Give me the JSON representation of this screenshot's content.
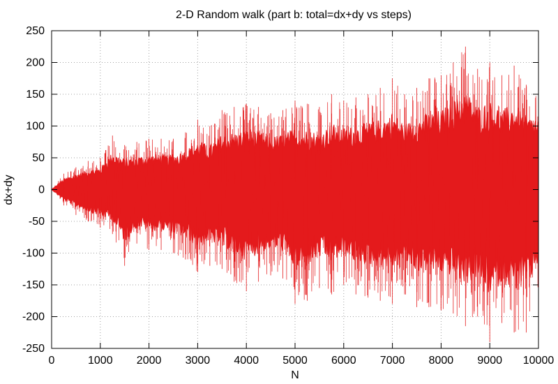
{
  "chart_data": {
    "type": "line",
    "title": "2-D Random walk (part b: total=dx+dy vs steps)",
    "xlabel": "N",
    "ylabel": "dx+dy",
    "xlim": [
      0,
      10000
    ],
    "ylim": [
      -250,
      250
    ],
    "xticks": [
      0,
      1000,
      2000,
      3000,
      4000,
      5000,
      6000,
      7000,
      8000,
      9000,
      10000
    ],
    "yticks": [
      -250,
      -200,
      -150,
      -100,
      -50,
      0,
      50,
      100,
      150,
      200,
      250
    ],
    "grid": true,
    "line_color": "#e41a1c",
    "series": [
      {
        "name": "",
        "x": [
          0,
          250,
          500,
          750,
          1000,
          1250,
          1500,
          1750,
          2000,
          2250,
          2500,
          2750,
          3000,
          3250,
          3500,
          3750,
          4000,
          4250,
          4500,
          4750,
          5000,
          5250,
          5500,
          5750,
          6000,
          6250,
          6500,
          6750,
          7000,
          7250,
          7500,
          7750,
          8000,
          8250,
          8500,
          8750,
          9000,
          9250,
          9500,
          9750,
          10000
        ],
        "upper": [
          0,
          25,
          35,
          45,
          50,
          85,
          70,
          75,
          80,
          80,
          80,
          90,
          110,
          100,
          125,
          130,
          135,
          130,
          120,
          125,
          140,
          135,
          130,
          150,
          140,
          145,
          150,
          160,
          175,
          150,
          160,
          175,
          180,
          200,
          225,
          190,
          200,
          180,
          195,
          165,
          165
        ],
        "lower": [
          0,
          -25,
          -40,
          -50,
          -60,
          -70,
          -120,
          -85,
          -95,
          -95,
          -100,
          -110,
          -130,
          -120,
          -125,
          -145,
          -160,
          -145,
          -135,
          -140,
          -180,
          -175,
          -155,
          -165,
          -150,
          -165,
          -170,
          -175,
          -180,
          -165,
          -185,
          -185,
          -190,
          -195,
          -215,
          -200,
          -240,
          -210,
          -225,
          -225,
          -165
        ]
      }
    ]
  }
}
